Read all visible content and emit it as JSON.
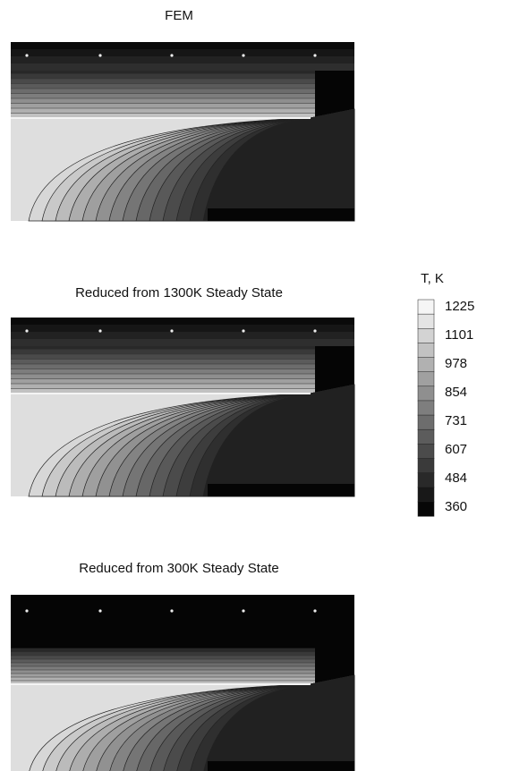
{
  "panels": [
    {
      "title": "FEM"
    },
    {
      "title": "Reduced from 1300K Steady State"
    },
    {
      "title": "Reduced from 300K Steady State"
    }
  ],
  "colorbar": {
    "title": "T, K",
    "ticks": [
      "1225",
      "1101",
      "978",
      "854",
      "731",
      "607",
      "484",
      "360"
    ]
  }
}
